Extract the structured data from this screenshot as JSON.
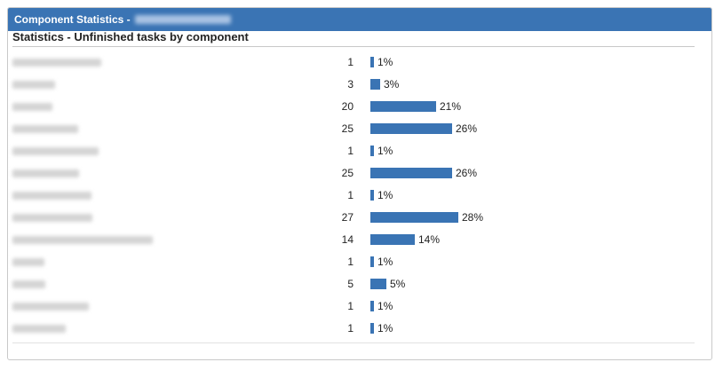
{
  "panel": {
    "title": "Component Statistics -"
  },
  "section": {
    "title": "Statistics - Unfinished tasks by component"
  },
  "colors": {
    "header_bg": "#3a74b4",
    "bar": "#3a74b4"
  },
  "rows": [
    {
      "count": "1",
      "pct": "1%",
      "share": 0.01
    },
    {
      "count": "3",
      "pct": "3%",
      "share": 0.03
    },
    {
      "count": "20",
      "pct": "21%",
      "share": 0.21
    },
    {
      "count": "25",
      "pct": "26%",
      "share": 0.26
    },
    {
      "count": "1",
      "pct": "1%",
      "share": 0.01
    },
    {
      "count": "25",
      "pct": "26%",
      "share": 0.26
    },
    {
      "count": "1",
      "pct": "1%",
      "share": 0.01
    },
    {
      "count": "27",
      "pct": "28%",
      "share": 0.28
    },
    {
      "count": "14",
      "pct": "14%",
      "share": 0.14
    },
    {
      "count": "1",
      "pct": "1%",
      "share": 0.01
    },
    {
      "count": "5",
      "pct": "5%",
      "share": 0.05
    },
    {
      "count": "1",
      "pct": "1%",
      "share": 0.01
    },
    {
      "count": "1",
      "pct": "1%",
      "share": 0.01
    }
  ]
}
